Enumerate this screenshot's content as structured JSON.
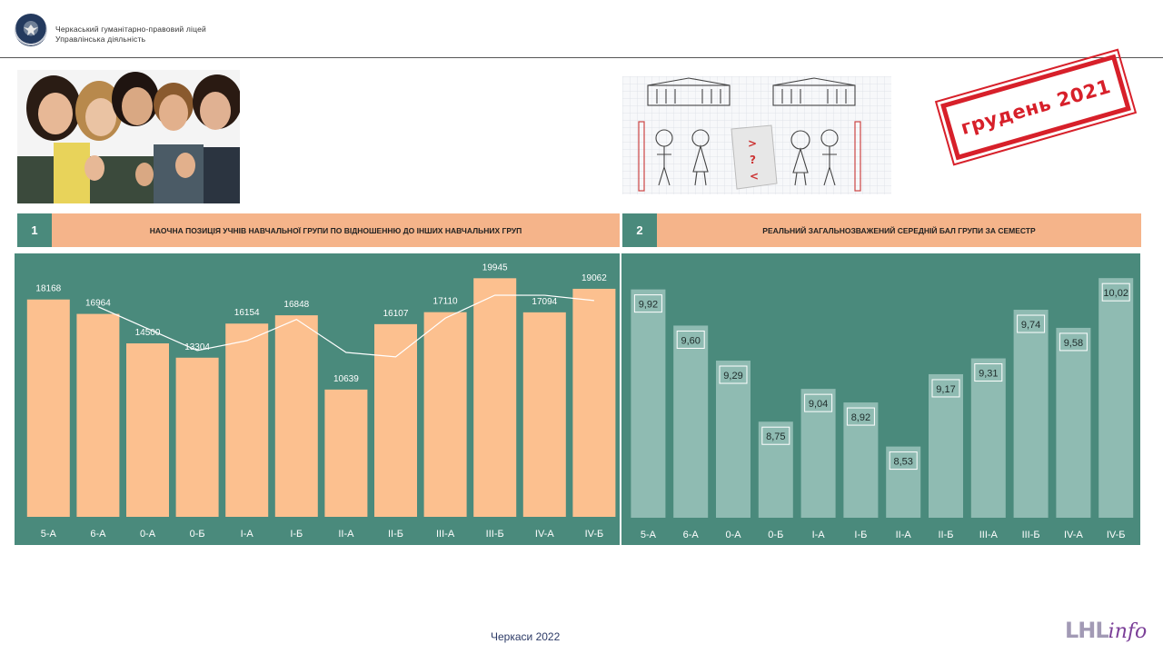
{
  "header": {
    "org_line1": "Черкаський  гуманітарно-правовий  ліцей",
    "org_line2": "Управлінська  діяльність"
  },
  "stamp": {
    "text": "грудень 2021"
  },
  "panel1": {
    "number": "1",
    "title": "НАОЧНА ПОЗИЦІЯ УЧНІВ НАВЧАЛЬНОЇ ГРУПИ ПО ВІДНОШЕННЮ ДО ІНШИХ НАВЧАЛЬНИХ ГРУП"
  },
  "panel2": {
    "number": "2",
    "title": "РЕАЛЬНИЙ ЗАГАЛЬНОЗВАЖЕНИЙ СЕРЕДНІЙ БАЛ ГРУПИ ЗА СЕМЕСТР"
  },
  "colors": {
    "accent_teal": "#4a8a7c",
    "header_orange": "#f5b48a",
    "bar_orange": "#fcc08f",
    "bar_teal": "#8fbbb2",
    "stamp_red": "#d7202a"
  },
  "chart_data": [
    {
      "type": "bar",
      "categories": [
        "5-А",
        "6-А",
        "0-А",
        "0-Б",
        "І-А",
        "І-Б",
        "ІІ-А",
        "ІІ-Б",
        "ІІІ-А",
        "ІІІ-Б",
        "ІV-А",
        "ІV-Б"
      ],
      "values": [
        18168,
        16964,
        14500,
        13304,
        16154,
        16848,
        10639,
        16107,
        17110,
        19945,
        17094,
        19062
      ],
      "value_labels": [
        "18168",
        "16964",
        "14500",
        "13304",
        "16154",
        "16848",
        "10639",
        "16107",
        "17110",
        "19945",
        "17094",
        "19062"
      ],
      "trendline": {
        "type": "moving-average",
        "period": 2
      },
      "ylim": [
        0,
        20500
      ],
      "grid": false
    },
    {
      "type": "bar",
      "categories": [
        "5-А",
        "6-А",
        "0-А",
        "0-Б",
        "І-А",
        "І-Б",
        "ІІ-А",
        "ІІ-Б",
        "ІІІ-А",
        "ІІІ-Б",
        "ІV-А",
        "ІV-Б"
      ],
      "values": [
        9.92,
        9.6,
        9.29,
        8.75,
        9.04,
        8.92,
        8.53,
        9.17,
        9.31,
        9.74,
        9.58,
        10.02
      ],
      "value_labels": [
        "9,92",
        "9,60",
        "9,29",
        "8,75",
        "9,04",
        "8,92",
        "8,53",
        "9,17",
        "9,31",
        "9,74",
        "9,58",
        "10,02"
      ],
      "ylim": [
        7.9,
        10.15
      ],
      "grid": false
    }
  ],
  "footer": {
    "city": "Черкаси 2022",
    "brand_a": "LHL",
    "brand_b": "info"
  }
}
